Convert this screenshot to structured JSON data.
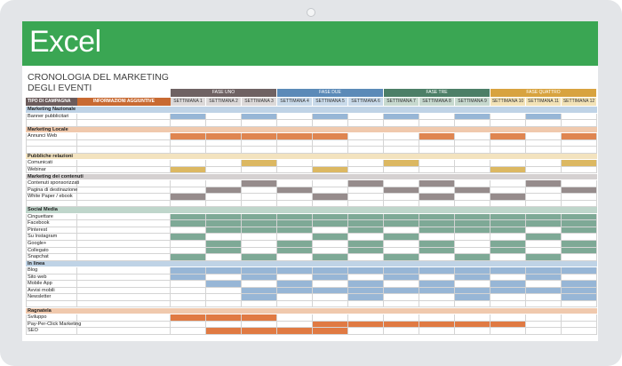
{
  "app": {
    "logo_text": "Excel"
  },
  "sheet_title": [
    "CRONOLOGIA DEL MARKETING",
    "DEGLI EVENTI"
  ],
  "column_headers": {
    "type": "TIPO DI CAMPAGNA",
    "info": "INFORMAZIONI AGGIUNTIVE"
  },
  "phases": [
    {
      "label": "FASE UNO",
      "color": "#6f6263",
      "week_fill": "#dcd9d9"
    },
    {
      "label": "FASE DUE",
      "color": "#5b8ab8",
      "week_fill": "#c9daea"
    },
    {
      "label": "FASE TRE",
      "color": "#4c7f67",
      "week_fill": "#c7d9cf"
    },
    {
      "label": "FASE QUATTRO",
      "color": "#d8a33f",
      "week_fill": "#f3e3b7"
    }
  ],
  "weeks": [
    "SETTIMANA 1",
    "SETTIMANA 2",
    "SETTIMANA 3",
    "SETTIMANA 4",
    "SETTIMANA 5",
    "SETTIMANA 6",
    "SETTIMANA 7",
    "SETTIMANA 8",
    "SETTIMANA 9",
    "SETTIMANA 10",
    "SETTIMANA 11",
    "SETTIMANA 12"
  ],
  "category_colors": {
    "blue": {
      "band": "#bfd3e6",
      "fill": "#97b6d6"
    },
    "orange": {
      "band": "#f0c9ad",
      "fill": "#df8550"
    },
    "gold": {
      "band": "#f3e3bf",
      "fill": "#dcb862"
    },
    "gray": {
      "band": "#d5d1d1",
      "fill": "#968c8c"
    },
    "green": {
      "band": "#bfd6cb",
      "fill": "#7ea996"
    },
    "peach": {
      "band": "#f0c9ad",
      "fill": "#e07a43"
    }
  },
  "sections": [
    {
      "title": "Marketing Nazionale",
      "color": "blue",
      "rows": [
        {
          "label": "Banner pubblicitari",
          "active": [
            1,
            3,
            5,
            7,
            9,
            11
          ]
        },
        {
          "label": "",
          "active": []
        }
      ]
    },
    {
      "title": "Marketing Locale",
      "color": "orange",
      "rows": [
        {
          "label": "Annunci Web",
          "active": [
            1,
            2,
            3,
            4,
            5,
            8,
            10,
            12
          ]
        },
        {
          "label": "",
          "active": []
        },
        {
          "label": "",
          "active": []
        }
      ]
    },
    {
      "title": "Pubbliche relazioni",
      "color": "gold",
      "rows": [
        {
          "label": "Comunicati",
          "active": [
            3,
            7,
            12
          ]
        },
        {
          "label": "Webinar",
          "active": [
            1,
            5,
            10
          ]
        }
      ]
    },
    {
      "title": "Marketing dei contenuti",
      "color": "gray",
      "rows": [
        {
          "label": "Contenuti sponsorizzati",
          "active": [
            3,
            6,
            8,
            11
          ]
        },
        {
          "label": "Pagina di destinazione",
          "active": [
            2,
            4,
            7,
            9,
            12
          ]
        },
        {
          "label": "White Paper / ebook",
          "active": [
            1,
            5,
            8,
            10
          ]
        },
        {
          "label": "",
          "active": []
        }
      ]
    },
    {
      "title": "Social Media",
      "color": "green",
      "rows": [
        {
          "label": "Cinguettare",
          "active": [
            1,
            2,
            3,
            4,
            5,
            6,
            7,
            8,
            9,
            10,
            11,
            12
          ]
        },
        {
          "label": "Facebook",
          "active": [
            1,
            2,
            3,
            4,
            5,
            6,
            7,
            8,
            9,
            10,
            11,
            12
          ]
        },
        {
          "label": "Pinterest",
          "active": [
            2,
            3,
            4,
            6,
            8,
            9,
            10,
            12
          ]
        },
        {
          "label": "Su Instagram",
          "active": [
            1,
            5,
            7,
            11
          ]
        },
        {
          "label": "Google+",
          "active": [
            2,
            4,
            6,
            8,
            10,
            12
          ]
        },
        {
          "label": "Collegato",
          "active": [
            2,
            4,
            6,
            8,
            10,
            12
          ]
        },
        {
          "label": "Snapchat",
          "active": [
            1,
            3,
            5,
            7,
            9,
            11
          ]
        }
      ]
    },
    {
      "title": "In linea",
      "color": "blue",
      "rows": [
        {
          "label": "Blog",
          "active": [
            1,
            2,
            3,
            4,
            5,
            6,
            7,
            8,
            9,
            10,
            11,
            12
          ]
        },
        {
          "label": "Sito web",
          "active": [
            1,
            3,
            5,
            7,
            9,
            11
          ]
        },
        {
          "label": "Mobile App",
          "active": [
            2,
            4,
            6,
            8,
            10,
            12
          ]
        },
        {
          "label": "Avvisi mobili",
          "active": [
            3,
            4,
            5,
            6,
            7,
            8,
            9,
            10,
            11,
            12
          ]
        },
        {
          "label": "Newsletter",
          "active": [
            3,
            6,
            9,
            12
          ]
        },
        {
          "label": "",
          "active": []
        }
      ]
    },
    {
      "title": "Ragnatela",
      "color": "peach",
      "rows": [
        {
          "label": "Sviluppo",
          "active": [
            1,
            2,
            3
          ]
        },
        {
          "label": "Pay-Per-Click Marketing",
          "active": [
            5,
            6,
            7,
            8,
            9,
            10
          ]
        },
        {
          "label": "SEO",
          "active": [
            2,
            3,
            4,
            5
          ]
        }
      ]
    }
  ]
}
